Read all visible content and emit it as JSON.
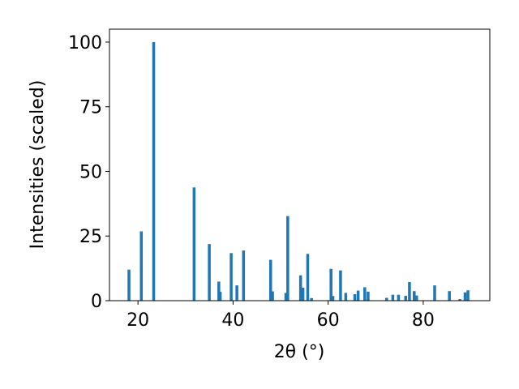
{
  "chart_data": {
    "type": "bar",
    "xlabel": "2θ (°)",
    "ylabel": "Intensities (scaled)",
    "xlim": [
      14,
      94
    ],
    "ylim": [
      0,
      105
    ],
    "xticks": [
      20,
      40,
      60,
      80
    ],
    "yticks": [
      0,
      25,
      50,
      75,
      100
    ],
    "bar_width_deg": 0.6,
    "grid": false,
    "color": "#1f77b4",
    "x": [
      18.1,
      20.7,
      23.3,
      31.8,
      35.0,
      37.0,
      37.3,
      39.6,
      40.8,
      42.2,
      47.9,
      48.3,
      51.1,
      51.5,
      54.2,
      54.7,
      55.7,
      56.5,
      60.6,
      61.0,
      62.6,
      63.7,
      65.6,
      66.3,
      67.7,
      68.4,
      72.3,
      73.6,
      74.8,
      76.3,
      77.1,
      78.1,
      78.6,
      82.4,
      85.5,
      87.7,
      88.8,
      89.4
    ],
    "y": [
      12.0,
      26.8,
      100.0,
      43.8,
      21.9,
      7.4,
      3.4,
      18.4,
      5.9,
      19.4,
      15.8,
      3.6,
      3.0,
      32.7,
      9.8,
      5.0,
      18.1,
      1.0,
      12.3,
      1.8,
      11.7,
      3.0,
      2.5,
      3.9,
      5.2,
      3.5,
      1.1,
      2.3,
      2.3,
      1.9,
      7.2,
      3.7,
      2.0,
      5.9,
      3.7,
      0.6,
      3.2,
      4.0
    ]
  }
}
